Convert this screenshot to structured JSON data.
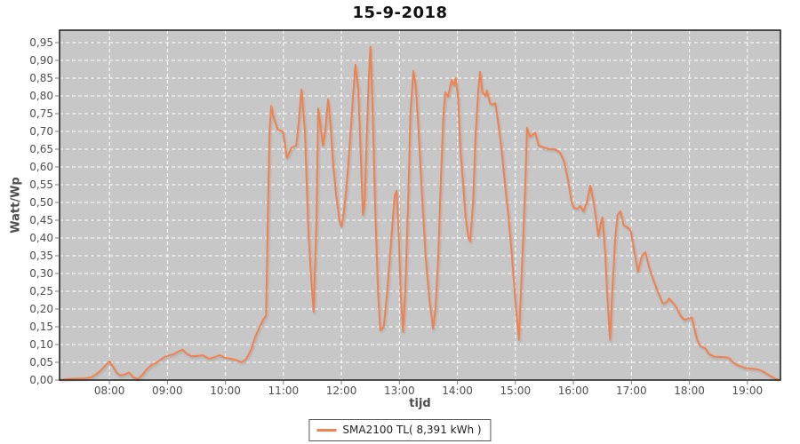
{
  "chart_data": {
    "type": "line",
    "title": "15-9-2018",
    "xlabel": "tijd",
    "ylabel": "Watt/Wp",
    "x_range": [
      7.14,
      19.57
    ],
    "y_range": [
      0,
      0.985
    ],
    "grid": {
      "on": true,
      "color": "#ffffff",
      "style": "dashed"
    },
    "plot_bg": "#c7c7c7",
    "plot_border_color": "#1a1a1a",
    "tick_color": "#808080",
    "tick_label_color": "#4d4d4d",
    "legend_position": "bottom-center",
    "x_ticks": [
      {
        "v": 8,
        "label": "08:00"
      },
      {
        "v": 9,
        "label": "09:00"
      },
      {
        "v": 10,
        "label": "10:00"
      },
      {
        "v": 11,
        "label": "11:00"
      },
      {
        "v": 12,
        "label": "12:00"
      },
      {
        "v": 13,
        "label": "13:00"
      },
      {
        "v": 14,
        "label": "14:00"
      },
      {
        "v": 15,
        "label": "15:00"
      },
      {
        "v": 16,
        "label": "16:00"
      },
      {
        "v": 17,
        "label": "17:00"
      },
      {
        "v": 18,
        "label": "18:00"
      },
      {
        "v": 19,
        "label": "19:00"
      }
    ],
    "y_ticks": [
      {
        "v": 0.0,
        "label": "0,00"
      },
      {
        "v": 0.05,
        "label": "0,05"
      },
      {
        "v": 0.1,
        "label": "0,10"
      },
      {
        "v": 0.15,
        "label": "0,15"
      },
      {
        "v": 0.2,
        "label": "0,20"
      },
      {
        "v": 0.25,
        "label": "0,25"
      },
      {
        "v": 0.3,
        "label": "0,30"
      },
      {
        "v": 0.35,
        "label": "0,35"
      },
      {
        "v": 0.4,
        "label": "0,40"
      },
      {
        "v": 0.45,
        "label": "0,45"
      },
      {
        "v": 0.5,
        "label": "0,50"
      },
      {
        "v": 0.55,
        "label": "0,55"
      },
      {
        "v": 0.6,
        "label": "0,60"
      },
      {
        "v": 0.65,
        "label": "0,65"
      },
      {
        "v": 0.7,
        "label": "0,70"
      },
      {
        "v": 0.75,
        "label": "0,75"
      },
      {
        "v": 0.8,
        "label": "0,80"
      },
      {
        "v": 0.85,
        "label": "0,85"
      },
      {
        "v": 0.9,
        "label": "0,90"
      },
      {
        "v": 0.95,
        "label": "0,95"
      }
    ],
    "series": [
      {
        "name": "SMA2100 TL( 8,391 kWh )",
        "color": "#f08250",
        "line_width": 2,
        "points": [
          [
            7.14,
            0.0
          ],
          [
            7.28,
            0.003
          ],
          [
            7.43,
            0.004
          ],
          [
            7.59,
            0.005
          ],
          [
            7.69,
            0.008
          ],
          [
            7.8,
            0.02
          ],
          [
            7.88,
            0.032
          ],
          [
            7.94,
            0.043
          ],
          [
            8.0,
            0.053
          ],
          [
            8.06,
            0.038
          ],
          [
            8.12,
            0.022
          ],
          [
            8.18,
            0.013
          ],
          [
            8.26,
            0.016
          ],
          [
            8.34,
            0.021
          ],
          [
            8.41,
            0.008
          ],
          [
            8.49,
            0.003
          ],
          [
            8.57,
            0.015
          ],
          [
            8.64,
            0.03
          ],
          [
            8.72,
            0.042
          ],
          [
            8.8,
            0.048
          ],
          [
            8.87,
            0.056
          ],
          [
            8.95,
            0.065
          ],
          [
            9.03,
            0.07
          ],
          [
            9.1,
            0.072
          ],
          [
            9.18,
            0.08
          ],
          [
            9.26,
            0.086
          ],
          [
            9.33,
            0.075
          ],
          [
            9.41,
            0.067
          ],
          [
            9.52,
            0.068
          ],
          [
            9.61,
            0.07
          ],
          [
            9.72,
            0.06
          ],
          [
            9.82,
            0.065
          ],
          [
            9.9,
            0.07
          ],
          [
            9.99,
            0.063
          ],
          [
            10.1,
            0.06
          ],
          [
            10.21,
            0.055
          ],
          [
            10.28,
            0.05
          ],
          [
            10.36,
            0.06
          ],
          [
            10.44,
            0.085
          ],
          [
            10.51,
            0.12
          ],
          [
            10.59,
            0.15
          ],
          [
            10.65,
            0.17
          ],
          [
            10.7,
            0.182
          ],
          [
            10.73,
            0.45
          ],
          [
            10.76,
            0.7
          ],
          [
            10.79,
            0.772
          ],
          [
            10.83,
            0.74
          ],
          [
            10.9,
            0.705
          ],
          [
            10.99,
            0.7
          ],
          [
            11.06,
            0.625
          ],
          [
            11.14,
            0.655
          ],
          [
            11.22,
            0.66
          ],
          [
            11.26,
            0.72
          ],
          [
            11.31,
            0.818
          ],
          [
            11.37,
            0.7
          ],
          [
            11.43,
            0.42
          ],
          [
            11.48,
            0.28
          ],
          [
            11.52,
            0.192
          ],
          [
            11.57,
            0.45
          ],
          [
            11.6,
            0.765
          ],
          [
            11.65,
            0.7
          ],
          [
            11.68,
            0.66
          ],
          [
            11.72,
            0.7
          ],
          [
            11.77,
            0.79
          ],
          [
            11.81,
            0.72
          ],
          [
            11.86,
            0.6
          ],
          [
            11.91,
            0.52
          ],
          [
            11.97,
            0.445
          ],
          [
            12.0,
            0.432
          ],
          [
            12.04,
            0.47
          ],
          [
            12.09,
            0.55
          ],
          [
            12.15,
            0.68
          ],
          [
            12.2,
            0.8
          ],
          [
            12.24,
            0.888
          ],
          [
            12.29,
            0.82
          ],
          [
            12.34,
            0.6
          ],
          [
            12.37,
            0.465
          ],
          [
            12.4,
            0.5
          ],
          [
            12.44,
            0.7
          ],
          [
            12.47,
            0.85
          ],
          [
            12.5,
            0.938
          ],
          [
            12.53,
            0.8
          ],
          [
            12.58,
            0.5
          ],
          [
            12.63,
            0.25
          ],
          [
            12.67,
            0.14
          ],
          [
            12.73,
            0.15
          ],
          [
            12.79,
            0.25
          ],
          [
            12.86,
            0.4
          ],
          [
            12.92,
            0.52
          ],
          [
            12.95,
            0.533
          ],
          [
            12.99,
            0.4
          ],
          [
            13.02,
            0.25
          ],
          [
            13.06,
            0.135
          ],
          [
            13.1,
            0.25
          ],
          [
            13.15,
            0.5
          ],
          [
            13.19,
            0.75
          ],
          [
            13.24,
            0.87
          ],
          [
            13.28,
            0.83
          ],
          [
            13.33,
            0.7
          ],
          [
            13.39,
            0.52
          ],
          [
            13.45,
            0.35
          ],
          [
            13.52,
            0.22
          ],
          [
            13.58,
            0.145
          ],
          [
            13.62,
            0.2
          ],
          [
            13.67,
            0.35
          ],
          [
            13.71,
            0.55
          ],
          [
            13.76,
            0.75
          ],
          [
            13.79,
            0.81
          ],
          [
            13.84,
            0.798
          ],
          [
            13.9,
            0.845
          ],
          [
            13.94,
            0.83
          ],
          [
            13.97,
            0.85
          ],
          [
            14.01,
            0.8
          ],
          [
            14.05,
            0.65
          ],
          [
            14.1,
            0.55
          ],
          [
            14.14,
            0.46
          ],
          [
            14.19,
            0.4
          ],
          [
            14.22,
            0.39
          ],
          [
            14.27,
            0.5
          ],
          [
            14.31,
            0.68
          ],
          [
            14.36,
            0.82
          ],
          [
            14.39,
            0.868
          ],
          [
            14.43,
            0.81
          ],
          [
            14.48,
            0.8
          ],
          [
            14.51,
            0.815
          ],
          [
            14.56,
            0.78
          ],
          [
            14.6,
            0.775
          ],
          [
            14.65,
            0.78
          ],
          [
            14.69,
            0.74
          ],
          [
            14.76,
            0.65
          ],
          [
            14.82,
            0.55
          ],
          [
            14.88,
            0.46
          ],
          [
            14.94,
            0.35
          ],
          [
            15.0,
            0.22
          ],
          [
            15.06,
            0.113
          ],
          [
            15.12,
            0.35
          ],
          [
            15.17,
            0.55
          ],
          [
            15.2,
            0.71
          ],
          [
            15.25,
            0.685
          ],
          [
            15.29,
            0.69
          ],
          [
            15.34,
            0.697
          ],
          [
            15.4,
            0.66
          ],
          [
            15.49,
            0.655
          ],
          [
            15.58,
            0.65
          ],
          [
            15.68,
            0.65
          ],
          [
            15.77,
            0.64
          ],
          [
            15.84,
            0.615
          ],
          [
            15.91,
            0.56
          ],
          [
            15.97,
            0.5
          ],
          [
            16.01,
            0.485
          ],
          [
            16.07,
            0.482
          ],
          [
            16.12,
            0.49
          ],
          [
            16.17,
            0.475
          ],
          [
            16.23,
            0.5
          ],
          [
            16.29,
            0.548
          ],
          [
            16.35,
            0.5
          ],
          [
            16.4,
            0.44
          ],
          [
            16.43,
            0.405
          ],
          [
            16.47,
            0.44
          ],
          [
            16.5,
            0.458
          ],
          [
            16.55,
            0.35
          ],
          [
            16.58,
            0.25
          ],
          [
            16.63,
            0.113
          ],
          [
            16.67,
            0.25
          ],
          [
            16.72,
            0.4
          ],
          [
            16.76,
            0.465
          ],
          [
            16.81,
            0.475
          ],
          [
            16.87,
            0.435
          ],
          [
            16.93,
            0.43
          ],
          [
            16.99,
            0.42
          ],
          [
            17.05,
            0.36
          ],
          [
            17.11,
            0.305
          ],
          [
            17.18,
            0.35
          ],
          [
            17.24,
            0.36
          ],
          [
            17.3,
            0.32
          ],
          [
            17.36,
            0.29
          ],
          [
            17.45,
            0.25
          ],
          [
            17.54,
            0.215
          ],
          [
            17.61,
            0.22
          ],
          [
            17.65,
            0.23
          ],
          [
            17.73,
            0.215
          ],
          [
            17.79,
            0.2
          ],
          [
            17.85,
            0.18
          ],
          [
            17.91,
            0.17
          ],
          [
            17.97,
            0.172
          ],
          [
            18.04,
            0.176
          ],
          [
            18.08,
            0.15
          ],
          [
            18.13,
            0.115
          ],
          [
            18.19,
            0.095
          ],
          [
            18.27,
            0.09
          ],
          [
            18.34,
            0.073
          ],
          [
            18.43,
            0.066
          ],
          [
            18.56,
            0.065
          ],
          [
            18.68,
            0.063
          ],
          [
            18.75,
            0.05
          ],
          [
            18.83,
            0.042
          ],
          [
            18.95,
            0.035
          ],
          [
            19.08,
            0.032
          ],
          [
            19.18,
            0.03
          ],
          [
            19.26,
            0.025
          ],
          [
            19.33,
            0.018
          ],
          [
            19.41,
            0.01
          ],
          [
            19.47,
            0.005
          ],
          [
            19.53,
            0.001
          ]
        ]
      }
    ]
  }
}
